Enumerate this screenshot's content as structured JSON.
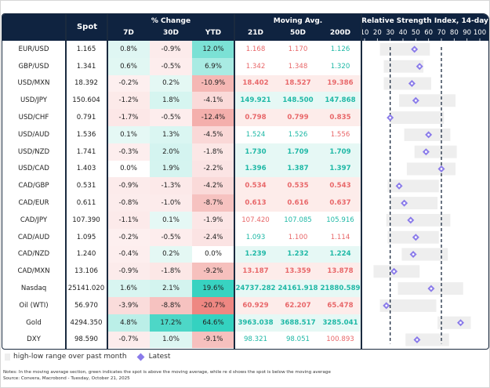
{
  "header": {
    "spot": "Spot",
    "pct_change_group": "% Change",
    "pct_cols": [
      "7D",
      "30D",
      "YTD"
    ],
    "ma_group": "Moving Avg.",
    "ma_cols": [
      "21D",
      "50D",
      "200D"
    ],
    "rsi_group": "Relative Strength Index, 14-day",
    "rsi_ticks": [
      "10",
      "20",
      "30",
      "40",
      "50",
      "60",
      "70",
      "80",
      "90",
      "100"
    ]
  },
  "colors": {
    "header_bg": "#0f2340",
    "positive_text": "#1fb8a6",
    "negative_text": "#e8686a",
    "latest_marker": "#8a7bea",
    "range_bar": "#eeeeee",
    "threshold_line": "#1a2a3f"
  },
  "rsi": {
    "axis_min": 10,
    "axis_max": 100,
    "oversold": 30,
    "overbought": 70
  },
  "rows": [
    {
      "name": "EUR/USD",
      "spot": "1.165",
      "pct": [
        "0.8%",
        "-0.9%",
        "12.0%"
      ],
      "ma": [
        "1.168",
        "1.170",
        "1.126"
      ],
      "ma_sign": [
        "neg",
        "neg",
        "pos"
      ],
      "ma_bold": false,
      "rsi_low": 22,
      "rsi_high": 61,
      "rsi_latest": 49
    },
    {
      "name": "GBP/USD",
      "spot": "1.341",
      "pct": [
        "0.6%",
        "-0.5%",
        "6.9%"
      ],
      "ma": [
        "1.342",
        "1.348",
        "1.320"
      ],
      "ma_sign": [
        "neg",
        "neg",
        "pos"
      ],
      "ma_bold": false,
      "rsi_low": 25,
      "rsi_high": 56,
      "rsi_latest": 53
    },
    {
      "name": "USD/MXN",
      "spot": "18.392",
      "pct": [
        "-0.2%",
        "0.2%",
        "-10.9%"
      ],
      "ma": [
        "18.402",
        "18.527",
        "19.386"
      ],
      "ma_sign": [
        "neg",
        "neg",
        "neg"
      ],
      "ma_bold": true,
      "rsi_low": 25,
      "rsi_high": 62,
      "rsi_latest": 47
    },
    {
      "name": "USD/JPY",
      "spot": "150.604",
      "pct": [
        "-1.2%",
        "1.8%",
        "-4.1%"
      ],
      "ma": [
        "149.921",
        "148.500",
        "147.868"
      ],
      "ma_sign": [
        "pos",
        "pos",
        "pos"
      ],
      "ma_bold": true,
      "rsi_low": 37,
      "rsi_high": 81,
      "rsi_latest": 50
    },
    {
      "name": "USD/CHF",
      "spot": "0.791",
      "pct": [
        "-1.7%",
        "-0.5%",
        "-12.4%"
      ],
      "ma": [
        "0.798",
        "0.799",
        "0.835"
      ],
      "ma_sign": [
        "neg",
        "neg",
        "neg"
      ],
      "ma_bold": true,
      "rsi_low": 30,
      "rsi_high": 72,
      "rsi_latest": 30
    },
    {
      "name": "USD/AUD",
      "spot": "1.536",
      "pct": [
        "0.1%",
        "1.3%",
        "-4.5%"
      ],
      "ma": [
        "1.524",
        "1.526",
        "1.556"
      ],
      "ma_sign": [
        "pos",
        "pos",
        "neg"
      ],
      "ma_bold": false,
      "rsi_low": 41,
      "rsi_high": 77,
      "rsi_latest": 60
    },
    {
      "name": "USD/NZD",
      "spot": "1.741",
      "pct": [
        "-0.3%",
        "2.0%",
        "-1.8%"
      ],
      "ma": [
        "1.730",
        "1.709",
        "1.709"
      ],
      "ma_sign": [
        "pos",
        "pos",
        "pos"
      ],
      "ma_bold": true,
      "rsi_low": 49,
      "rsi_high": 82,
      "rsi_latest": 58
    },
    {
      "name": "USD/CAD",
      "spot": "1.403",
      "pct": [
        "0.0%",
        "1.9%",
        "-2.2%"
      ],
      "ma": [
        "1.396",
        "1.387",
        "1.397"
      ],
      "ma_sign": [
        "pos",
        "pos",
        "pos"
      ],
      "ma_bold": true,
      "rsi_low": 43,
      "rsi_high": 81,
      "rsi_latest": 70
    },
    {
      "name": "CAD/GBP",
      "spot": "0.531",
      "pct": [
        "-0.9%",
        "-1.3%",
        "-4.2%"
      ],
      "ma": [
        "0.534",
        "0.535",
        "0.543"
      ],
      "ma_sign": [
        "neg",
        "neg",
        "neg"
      ],
      "ma_bold": true,
      "rsi_low": 28,
      "rsi_high": 68,
      "rsi_latest": 37
    },
    {
      "name": "CAD/EUR",
      "spot": "0.611",
      "pct": [
        "-0.8%",
        "-1.0%",
        "-8.7%"
      ],
      "ma": [
        "0.613",
        "0.616",
        "0.637"
      ],
      "ma_sign": [
        "neg",
        "neg",
        "neg"
      ],
      "ma_bold": true,
      "rsi_low": 30,
      "rsi_high": 67,
      "rsi_latest": 41
    },
    {
      "name": "CAD/JPY",
      "spot": "107.390",
      "pct": [
        "-1.1%",
        "0.1%",
        "-1.9%"
      ],
      "ma": [
        "107.420",
        "107.085",
        "105.916"
      ],
      "ma_sign": [
        "neg",
        "pos",
        "pos"
      ],
      "ma_bold": false,
      "rsi_low": 27,
      "rsi_high": 77,
      "rsi_latest": 46
    },
    {
      "name": "CAD/AUD",
      "spot": "1.095",
      "pct": [
        "-0.2%",
        "-0.5%",
        "-2.4%"
      ],
      "ma": [
        "1.093",
        "1.100",
        "1.114"
      ],
      "ma_sign": [
        "pos",
        "neg",
        "neg"
      ],
      "ma_bold": false,
      "rsi_low": 28,
      "rsi_high": 68,
      "rsi_latest": 50
    },
    {
      "name": "CAD/NZD",
      "spot": "1.240",
      "pct": [
        "-0.4%",
        "0.2%",
        "0.0%"
      ],
      "ma": [
        "1.239",
        "1.232",
        "1.224"
      ],
      "ma_sign": [
        "pos",
        "pos",
        "pos"
      ],
      "ma_bold": true,
      "rsi_low": 39,
      "rsi_high": 75,
      "rsi_latest": 48
    },
    {
      "name": "CAD/MXN",
      "spot": "13.106",
      "pct": [
        "-0.9%",
        "-1.8%",
        "-9.2%"
      ],
      "ma": [
        "13.187",
        "13.359",
        "13.878"
      ],
      "ma_sign": [
        "neg",
        "neg",
        "neg"
      ],
      "ma_bold": true,
      "rsi_low": 17,
      "rsi_high": 53,
      "rsi_latest": 33
    },
    {
      "name": "Nasdaq",
      "spot": "25141.020",
      "pct": [
        "1.6%",
        "2.1%",
        "19.6%"
      ],
      "ma": [
        "24737.282",
        "24161.918",
        "21880.589"
      ],
      "ma_sign": [
        "pos",
        "pos",
        "pos"
      ],
      "ma_bold": true,
      "rsi_low": 36,
      "rsi_high": 87,
      "rsi_latest": 62
    },
    {
      "name": "Oil (WTI)",
      "spot": "56.970",
      "pct": [
        "-3.9%",
        "-8.8%",
        "-20.7%"
      ],
      "ma": [
        "60.929",
        "62.207",
        "65.478"
      ],
      "ma_sign": [
        "neg",
        "neg",
        "neg"
      ],
      "ma_bold": true,
      "rsi_low": 22,
      "rsi_high": 66,
      "rsi_latest": 27
    },
    {
      "name": "Gold",
      "spot": "4294.350",
      "pct": [
        "4.8%",
        "17.2%",
        "64.6%"
      ],
      "ma": [
        "3963.038",
        "3688.517",
        "3285.041"
      ],
      "ma_sign": [
        "pos",
        "pos",
        "pos"
      ],
      "ma_bold": true,
      "rsi_low": 67,
      "rsi_high": 93,
      "rsi_latest": 85
    },
    {
      "name": "DXY",
      "spot": "98.590",
      "pct": [
        "-0.7%",
        "1.0%",
        "-9.1%"
      ],
      "ma": [
        "98.321",
        "98.051",
        "100.893"
      ],
      "ma_sign": [
        "pos",
        "pos",
        "neg"
      ],
      "ma_bold": false,
      "rsi_low": 42,
      "rsi_high": 76,
      "rsi_latest": 51
    }
  ],
  "legend": {
    "range_label": "high-low range over past month",
    "latest_label": "Latest"
  },
  "notes": {
    "line1": "Notes: In the moving average section, green indicates the spot is above the moving average, while re   d shows the spot is below   the moving average",
    "line2": "Source: Convera, Macrobond - Tuesday, October 21, 2025"
  }
}
